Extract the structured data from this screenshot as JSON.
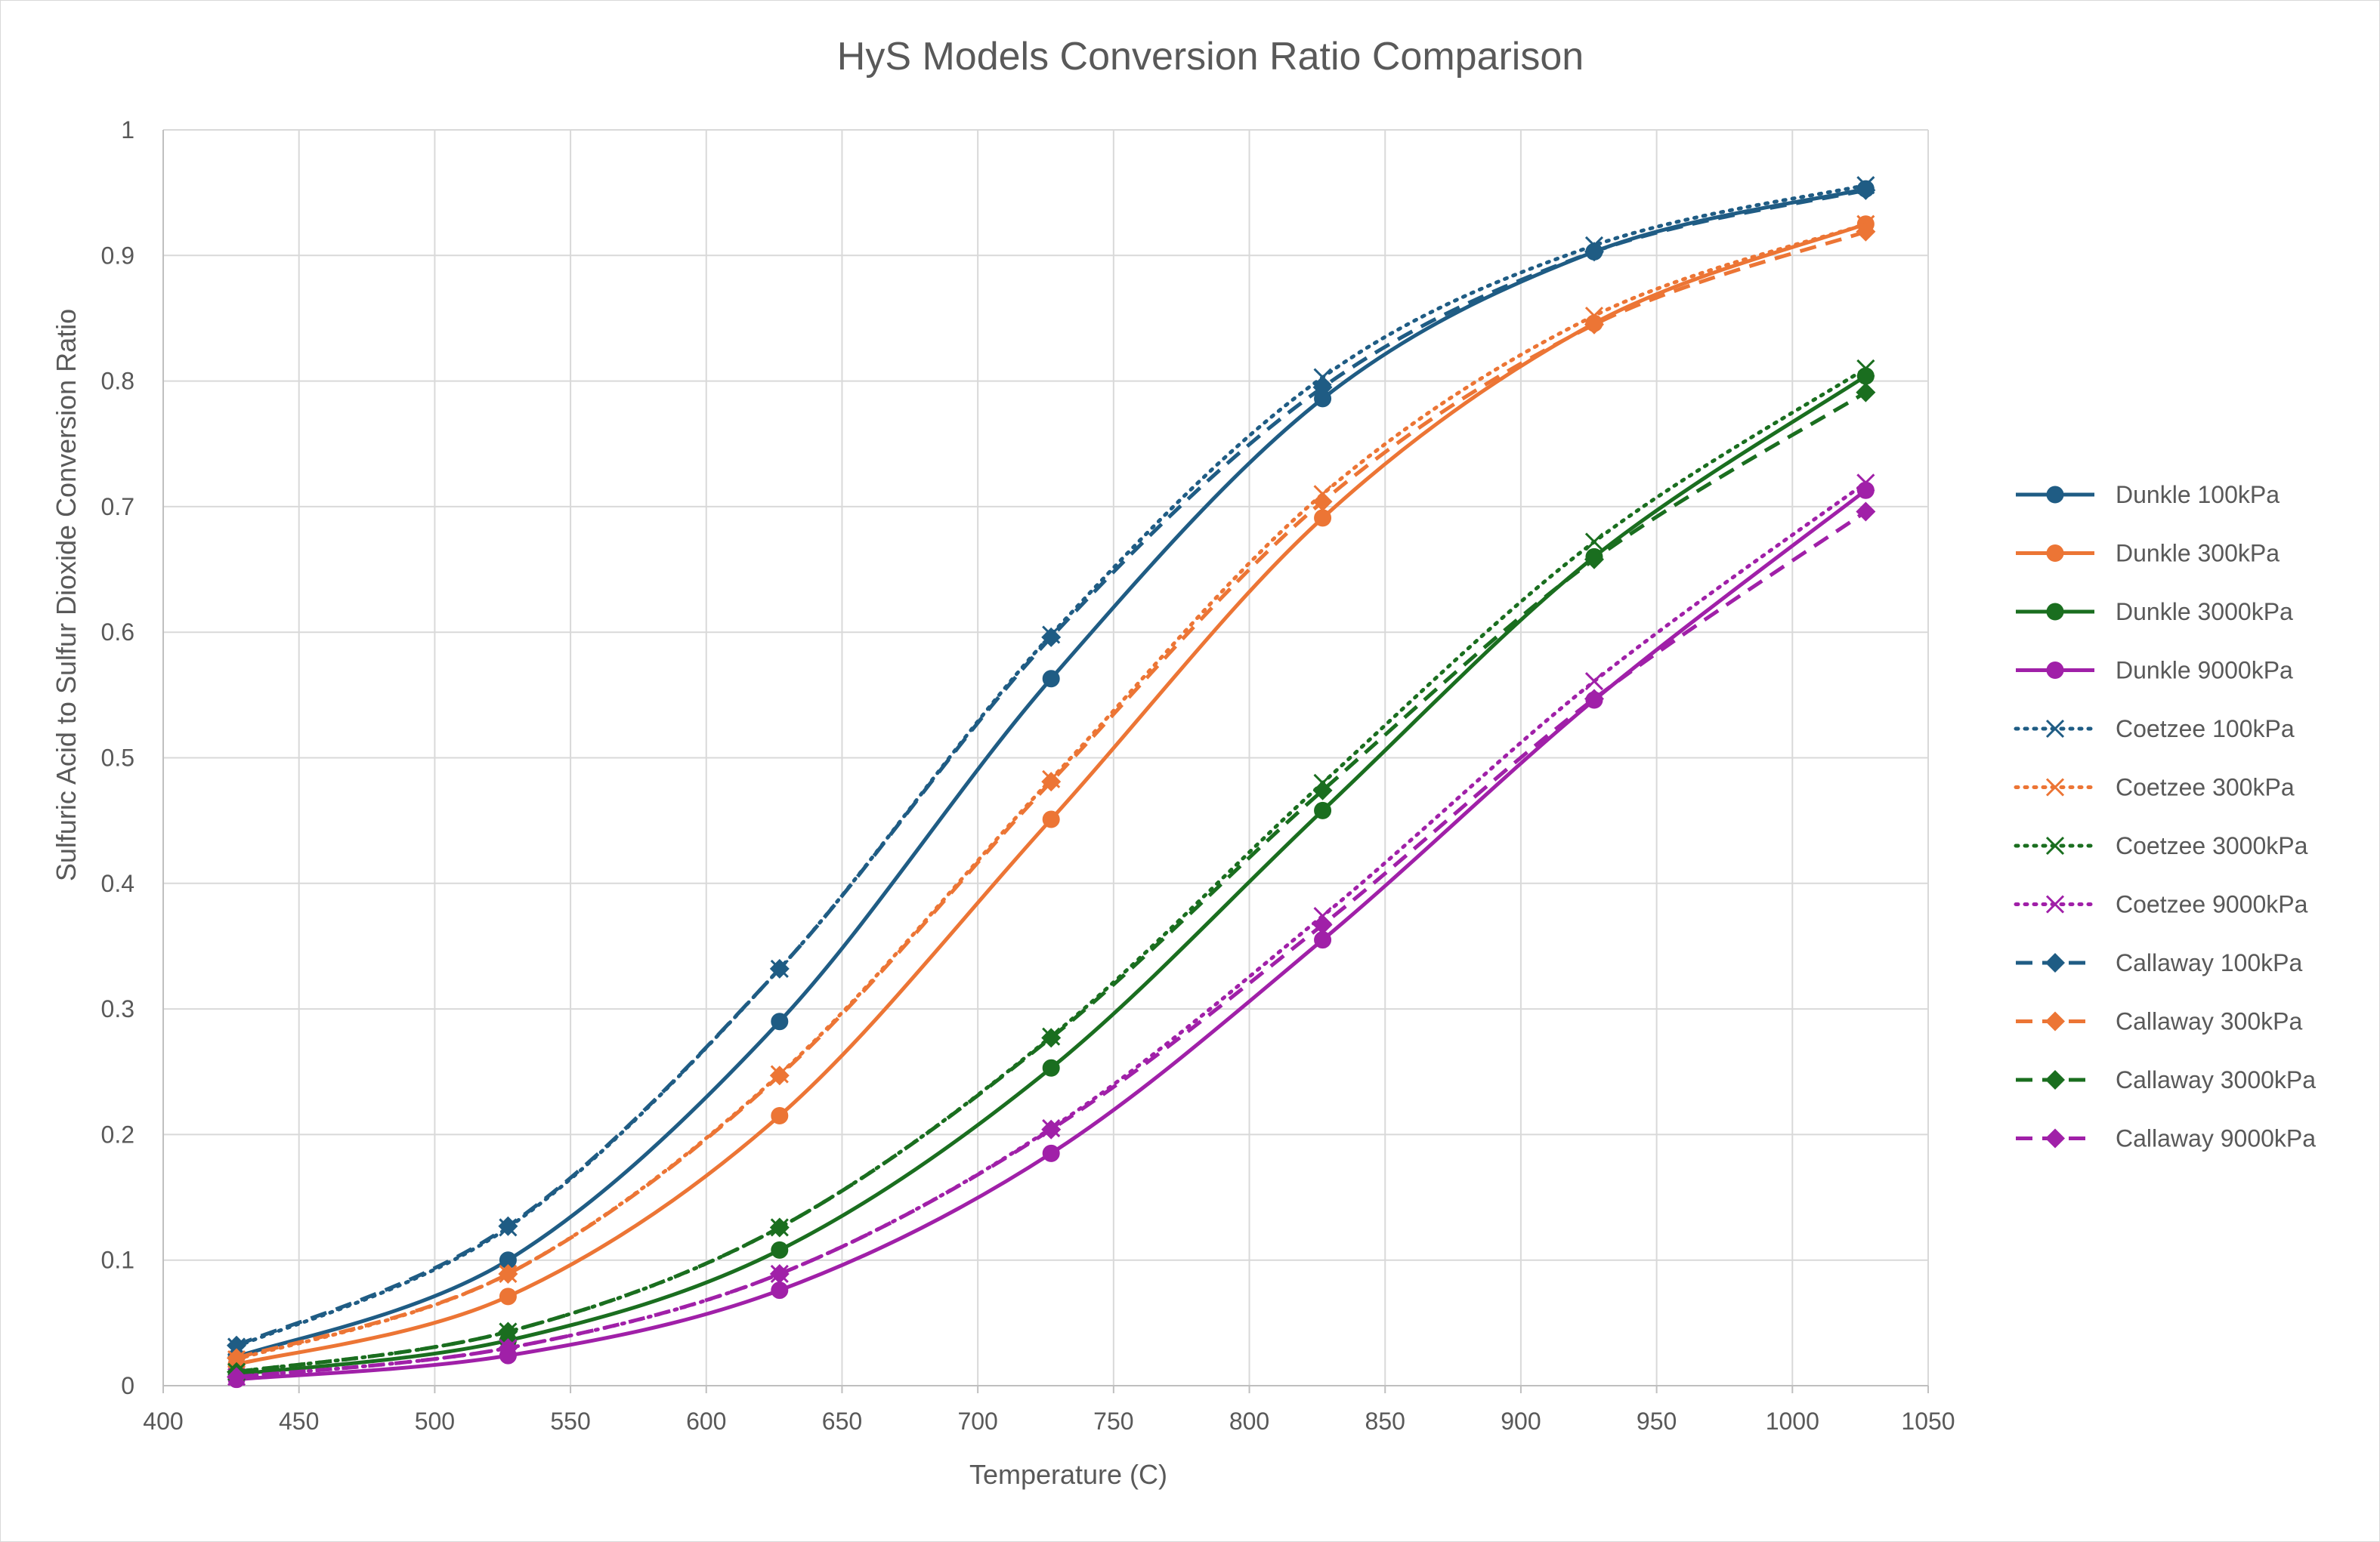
{
  "chart_data": {
    "type": "line",
    "title": "HyS Models Conversion Ratio Comparison",
    "xlabel": "Temperature (C)",
    "ylabel": "Sulfuric Acid to Sulfur Dioxide Conversion Ratio",
    "xlim": [
      400,
      1050
    ],
    "ylim": [
      0,
      1
    ],
    "x_ticks": [
      "400",
      "450",
      "500",
      "550",
      "600",
      "650",
      "700",
      "750",
      "800",
      "850",
      "900",
      "950",
      "1000",
      "1050"
    ],
    "y_ticks": [
      "0",
      "0.1",
      "0.2",
      "0.3",
      "0.4",
      "0.5",
      "0.6",
      "0.7",
      "0.8",
      "0.9",
      "1"
    ],
    "grid": true,
    "legend_position": "right",
    "x": [
      427,
      527,
      627,
      727,
      827,
      927,
      1027
    ],
    "series": [
      {
        "name": "Dunkle 100kPa",
        "color": "#1f5c84",
        "dash": "solid",
        "marker": "circle",
        "values": [
          0.023,
          0.1,
          0.29,
          0.563,
          0.786,
          0.903,
          0.953
        ]
      },
      {
        "name": "Dunkle 300kPa",
        "color": "#ec7535",
        "dash": "solid",
        "marker": "circle",
        "values": [
          0.017,
          0.071,
          0.215,
          0.451,
          0.691,
          0.846,
          0.925
        ]
      },
      {
        "name": "Dunkle 3000kPa",
        "color": "#1a6e1f",
        "dash": "solid",
        "marker": "circle",
        "values": [
          0.009,
          0.036,
          0.108,
          0.253,
          0.458,
          0.66,
          0.804
        ]
      },
      {
        "name": "Dunkle 9000kPa",
        "color": "#a020a8",
        "dash": "solid",
        "marker": "circle",
        "values": [
          0.005,
          0.024,
          0.076,
          0.185,
          0.355,
          0.546,
          0.713
        ]
      },
      {
        "name": "Coetzee 100kPa",
        "color": "#1f5c84",
        "dash": "dotted",
        "marker": "x",
        "values": [
          0.031,
          0.126,
          0.332,
          0.598,
          0.803,
          0.908,
          0.956
        ]
      },
      {
        "name": "Coetzee 300kPa",
        "color": "#ec7535",
        "dash": "dotted",
        "marker": "x",
        "values": [
          0.021,
          0.089,
          0.248,
          0.483,
          0.71,
          0.852,
          0.925
        ]
      },
      {
        "name": "Coetzee 3000kPa",
        "color": "#1a6e1f",
        "dash": "dotted",
        "marker": "x",
        "values": [
          0.011,
          0.043,
          0.126,
          0.278,
          0.48,
          0.672,
          0.81
        ]
      },
      {
        "name": "Coetzee 9000kPa",
        "color": "#a020a8",
        "dash": "dotted",
        "marker": "x",
        "values": [
          0.007,
          0.03,
          0.089,
          0.205,
          0.374,
          0.561,
          0.719
        ]
      },
      {
        "name": "Callaway 100kPa",
        "color": "#1f5c84",
        "dash": "dashed",
        "marker": "diamond",
        "values": [
          0.032,
          0.127,
          0.332,
          0.596,
          0.795,
          0.903,
          0.952
        ]
      },
      {
        "name": "Callaway 300kPa",
        "color": "#ec7535",
        "dash": "dashed",
        "marker": "diamond",
        "values": [
          0.022,
          0.089,
          0.247,
          0.481,
          0.704,
          0.845,
          0.919
        ]
      },
      {
        "name": "Callaway 3000kPa",
        "color": "#1a6e1f",
        "dash": "dashed",
        "marker": "diamond",
        "values": [
          0.011,
          0.043,
          0.126,
          0.277,
          0.474,
          0.658,
          0.791
        ]
      },
      {
        "name": "Callaway 9000kPa",
        "color": "#a020a8",
        "dash": "dashed",
        "marker": "diamond",
        "values": [
          0.007,
          0.03,
          0.089,
          0.204,
          0.367,
          0.547,
          0.696
        ]
      }
    ]
  }
}
